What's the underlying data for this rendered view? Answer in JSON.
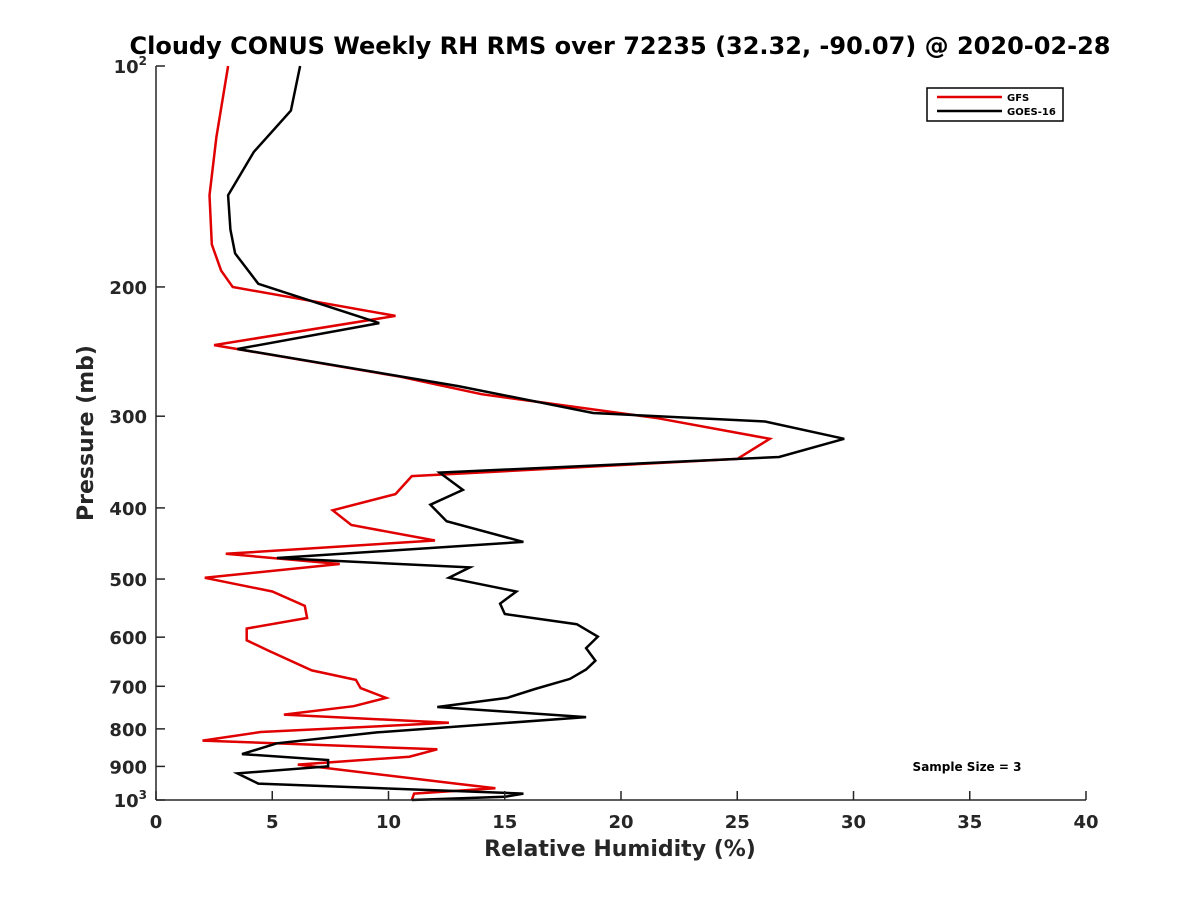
{
  "chart_data": {
    "type": "line",
    "title": "Cloudy CONUS Weekly RH RMS over 72235 (32.32, -90.07) @ 2020-02-28",
    "xlabel": "Relative Humidity (%)",
    "ylabel": "Pressure (mb)",
    "xlim": [
      0,
      40
    ],
    "ylim": [
      100,
      1000
    ],
    "yscale": "log",
    "y_reversed": true,
    "grid": false,
    "legend_position": "top-right",
    "annotation": "Sample Size = 3",
    "x_ticks": [
      {
        "value": 0,
        "label": "0"
      },
      {
        "value": 5,
        "label": "5"
      },
      {
        "value": 10,
        "label": "10"
      },
      {
        "value": 15,
        "label": "15"
      },
      {
        "value": 20,
        "label": "20"
      },
      {
        "value": 25,
        "label": "25"
      },
      {
        "value": 30,
        "label": "30"
      },
      {
        "value": 35,
        "label": "35"
      },
      {
        "value": 40,
        "label": "40"
      }
    ],
    "y_ticks": [
      {
        "value": 100,
        "label": "10",
        "sup": "2"
      },
      {
        "value": 200,
        "label": "200",
        "sup": ""
      },
      {
        "value": 300,
        "label": "300",
        "sup": ""
      },
      {
        "value": 400,
        "label": "400",
        "sup": ""
      },
      {
        "value": 500,
        "label": "500",
        "sup": ""
      },
      {
        "value": 600,
        "label": "600",
        "sup": ""
      },
      {
        "value": 700,
        "label": "700",
        "sup": ""
      },
      {
        "value": 800,
        "label": "800",
        "sup": ""
      },
      {
        "value": 900,
        "label": "900",
        "sup": ""
      },
      {
        "value": 1000,
        "label": "10",
        "sup": "3"
      }
    ],
    "series": [
      {
        "name": "GFS",
        "color": "#e00000",
        "points": [
          [
            3.1,
            100
          ],
          [
            2.6,
            125
          ],
          [
            2.3,
            150
          ],
          [
            2.4,
            175
          ],
          [
            2.8,
            190
          ],
          [
            3.3,
            200
          ],
          [
            10.3,
            219
          ],
          [
            2.5,
            240
          ],
          [
            10.5,
            265
          ],
          [
            14.0,
            280
          ],
          [
            21.6,
            302
          ],
          [
            26.4,
            322
          ],
          [
            25.0,
            343
          ],
          [
            11.0,
            362
          ],
          [
            10.3,
            383
          ],
          [
            7.6,
            403
          ],
          [
            8.4,
            422
          ],
          [
            12.0,
            443
          ],
          [
            3.0,
            462
          ],
          [
            7.9,
            477
          ],
          [
            2.1,
            498
          ],
          [
            5.0,
            520
          ],
          [
            6.4,
            544
          ],
          [
            6.5,
            565
          ],
          [
            3.9,
            584
          ],
          [
            3.9,
            606
          ],
          [
            4.8,
            625
          ],
          [
            6.7,
            666
          ],
          [
            8.6,
            686
          ],
          [
            8.8,
            704
          ],
          [
            9.9,
            726
          ],
          [
            8.5,
            745
          ],
          [
            5.5,
            765
          ],
          [
            12.6,
            785
          ],
          [
            4.5,
            808
          ],
          [
            2.0,
            830
          ],
          [
            12.1,
            853
          ],
          [
            10.9,
            873
          ],
          [
            6.1,
            895
          ],
          [
            12.9,
            950
          ],
          [
            14.6,
            964
          ],
          [
            11.1,
            980
          ],
          [
            11.0,
            1000
          ]
        ]
      },
      {
        "name": "GOES-16",
        "color": "#000000",
        "points": [
          [
            6.2,
            100
          ],
          [
            5.8,
            115
          ],
          [
            4.2,
            131
          ],
          [
            3.1,
            150
          ],
          [
            3.2,
            167
          ],
          [
            3.4,
            180
          ],
          [
            4.4,
            198
          ],
          [
            9.6,
            224
          ],
          [
            3.5,
            243
          ],
          [
            13.0,
            273
          ],
          [
            18.8,
            297
          ],
          [
            26.2,
            305
          ],
          [
            29.6,
            322
          ],
          [
            26.8,
            341
          ],
          [
            12.2,
            358
          ],
          [
            13.2,
            378
          ],
          [
            11.8,
            396
          ],
          [
            12.5,
            417
          ],
          [
            15.8,
            445
          ],
          [
            5.2,
            468
          ],
          [
            13.5,
            482
          ],
          [
            12.6,
            498
          ],
          [
            15.5,
            520
          ],
          [
            14.8,
            540
          ],
          [
            15.0,
            558
          ],
          [
            18.1,
            576
          ],
          [
            19.0,
            599
          ],
          [
            18.5,
            621
          ],
          [
            18.9,
            646
          ],
          [
            18.5,
            664
          ],
          [
            17.8,
            684
          ],
          [
            16.3,
            706
          ],
          [
            15.1,
            726
          ],
          [
            12.1,
            747
          ],
          [
            18.5,
            771
          ],
          [
            9.5,
            809
          ],
          [
            5.2,
            837
          ],
          [
            3.7,
            866
          ],
          [
            7.4,
            882
          ],
          [
            7.4,
            900
          ],
          [
            3.5,
            920
          ],
          [
            4.4,
            950
          ],
          [
            15.8,
            980
          ],
          [
            15.0,
            990
          ],
          [
            11.0,
            1000
          ]
        ]
      }
    ]
  }
}
